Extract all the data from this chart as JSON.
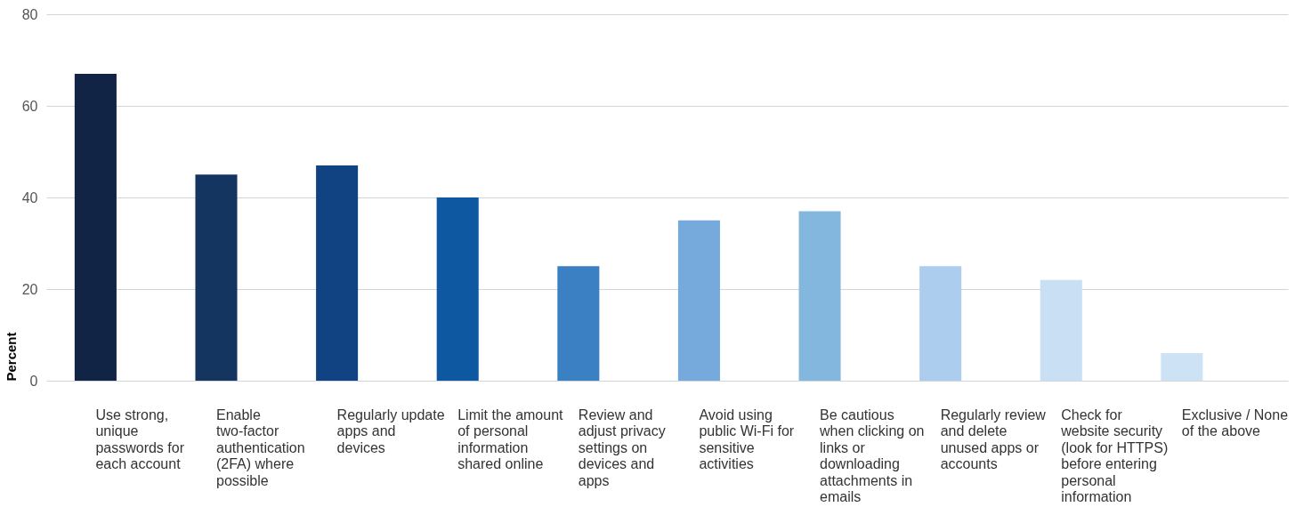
{
  "chart_data": {
    "type": "bar",
    "ylabel": "Percent",
    "categories": [
      "Use strong, unique passwords for each account",
      "Enable two-factor authentication (2FA) where possible",
      "Regularly update apps and devices",
      "Limit the amount of personal information shared online",
      "Review and adjust privacy settings on devices and apps",
      "Avoid using public Wi-Fi for sensitive activities",
      "Be cautious when clicking on links or downloading attachments in emails",
      "Regularly review and delete unused apps or accounts",
      "Check for website security (look for HTTPS) before entering personal information",
      "Exclusive / None of the above"
    ],
    "values": [
      67,
      45,
      47,
      40,
      25,
      35,
      37,
      25,
      22,
      6
    ],
    "colors": [
      "#112445",
      "#143560",
      "#114383",
      "#0e58a2",
      "#3b80c2",
      "#76a9dc",
      "#84b7de",
      "#adcdef",
      "#c9dff4",
      "#cde2f5"
    ],
    "ylim": [
      0,
      80
    ],
    "yticks": [
      0,
      20,
      40,
      60,
      80
    ],
    "grid": "y"
  }
}
